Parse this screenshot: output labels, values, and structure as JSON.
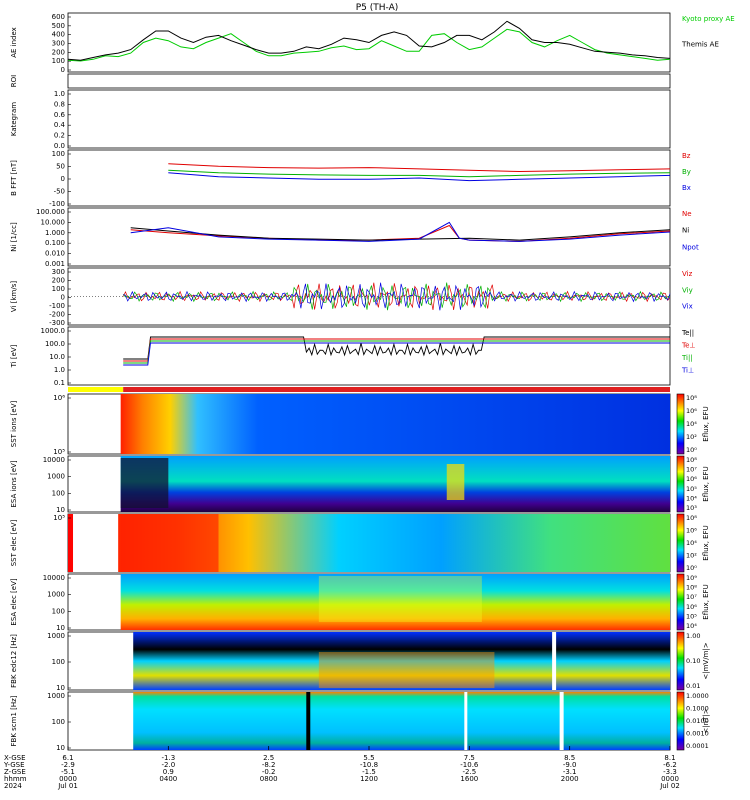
{
  "title": "P5  (TH-A)",
  "chart_data": [
    {
      "type": "line",
      "panel": "ae",
      "ylabel": "AE index",
      "yticks": [
        "600",
        "500",
        "400",
        "300",
        "200",
        "100",
        "0"
      ],
      "ylim": [
        0,
        600
      ],
      "series": [
        {
          "name": "Kyoto proxy AE",
          "color": "#00cc00",
          "x": [
            0,
            0.5,
            1,
            1.5,
            2,
            2.5,
            3,
            3.5,
            4,
            4.5,
            5,
            5.5,
            6,
            6.5,
            7,
            7.5,
            8,
            8.5,
            9,
            9.5,
            10,
            10.5,
            11,
            11.5,
            12,
            12.5,
            13,
            13.5,
            14,
            14.5,
            15,
            15.5,
            16,
            16.5,
            17,
            17.5,
            18,
            18.5,
            19,
            19.5,
            20,
            20.5,
            21,
            21.5,
            22,
            22.5,
            23,
            23.5,
            24
          ],
          "y": [
            100,
            90,
            110,
            150,
            140,
            180,
            300,
            350,
            320,
            250,
            230,
            300,
            350,
            400,
            300,
            200,
            150,
            150,
            180,
            190,
            200,
            240,
            260,
            220,
            230,
            320,
            260,
            200,
            200,
            380,
            400,
            300,
            220,
            250,
            350,
            450,
            420,
            300,
            250,
            320,
            380,
            300,
            220,
            180,
            160,
            140,
            120,
            100,
            110
          ]
        },
        {
          "name": "Themis AE",
          "color": "#000000",
          "x": [
            0,
            0.5,
            1,
            1.5,
            2,
            2.5,
            3,
            3.5,
            4,
            4.5,
            5,
            5.5,
            6,
            6.5,
            7,
            7.5,
            8,
            8.5,
            9,
            9.5,
            10,
            10.5,
            11,
            11.5,
            12,
            12.5,
            13,
            13.5,
            14,
            14.5,
            15,
            15.5,
            16,
            16.5,
            17,
            17.5,
            18,
            18.5,
            19,
            19.5,
            20,
            20.5,
            21,
            21.5,
            22,
            22.5,
            23,
            23.5,
            24
          ],
          "y": [
            110,
            100,
            130,
            160,
            180,
            220,
            330,
            430,
            430,
            350,
            300,
            360,
            380,
            320,
            270,
            220,
            180,
            180,
            200,
            250,
            230,
            280,
            350,
            330,
            300,
            380,
            420,
            380,
            260,
            250,
            300,
            380,
            380,
            330,
            420,
            540,
            460,
            330,
            300,
            300,
            280,
            240,
            200,
            190,
            180,
            160,
            150,
            130,
            120
          ]
        }
      ]
    },
    {
      "type": "bar",
      "panel": "roi",
      "ylabel": "ROI"
    },
    {
      "type": "line",
      "panel": "kategram",
      "ylabel": "Kategram",
      "yticks": [
        "1.0",
        "0.8",
        "0.6",
        "0.4",
        "0.2",
        "0.0"
      ],
      "ylim": [
        0,
        1
      ]
    },
    {
      "type": "line",
      "panel": "bfield",
      "ylabel": "B FFT [nT]",
      "yticks": [
        "100",
        "50",
        "0",
        "-50",
        "-100"
      ],
      "ylim": [
        -100,
        100
      ],
      "series": [
        {
          "name": "Bz",
          "color": "#e00000",
          "x": [
            4,
            6,
            8,
            10,
            12,
            14,
            16,
            18,
            20,
            22,
            24
          ],
          "y": [
            55,
            45,
            40,
            38,
            40,
            35,
            30,
            25,
            28,
            32,
            35
          ]
        },
        {
          "name": "By",
          "color": "#00b000",
          "x": [
            4,
            6,
            8,
            10,
            12,
            14,
            16,
            18,
            20,
            22,
            24
          ],
          "y": [
            30,
            20,
            15,
            12,
            10,
            10,
            5,
            10,
            15,
            18,
            20
          ]
        },
        {
          "name": "Bx",
          "color": "#0000e0",
          "x": [
            4,
            6,
            8,
            10,
            12,
            14,
            16,
            18,
            20,
            22,
            24
          ],
          "y": [
            20,
            5,
            0,
            -5,
            -5,
            0,
            -10,
            -5,
            0,
            5,
            10
          ]
        }
      ]
    },
    {
      "type": "line",
      "panel": "density",
      "ylabel": "Ni [1/cc]",
      "yticks": [
        "100.000",
        "10.000",
        "1.000",
        "0.100",
        "0.010",
        "0.001"
      ],
      "yscale": "log",
      "series": [
        {
          "name": "Ne",
          "color": "#e00000",
          "x": [
            2.5,
            4,
            6,
            8,
            10,
            12,
            14,
            15.2,
            15.6,
            16,
            18,
            20,
            22,
            24
          ],
          "y": [
            2,
            1,
            0.5,
            0.3,
            0.2,
            0.2,
            0.3,
            5,
            0.3,
            0.2,
            0.15,
            0.3,
            0.8,
            1.5
          ]
        },
        {
          "name": "Ni",
          "color": "#000000",
          "x": [
            2.5,
            4,
            6,
            8,
            10,
            12,
            14,
            16,
            18,
            20,
            22,
            24
          ],
          "y": [
            3,
            1.5,
            0.6,
            0.3,
            0.25,
            0.2,
            0.25,
            0.3,
            0.2,
            0.4,
            1,
            2
          ]
        },
        {
          "name": "Npot",
          "color": "#0000e0",
          "x": [
            2.5,
            4,
            6,
            8,
            10,
            12,
            14,
            15.2,
            15.6,
            16,
            18,
            20,
            22,
            24
          ],
          "y": [
            1,
            3,
            0.4,
            0.25,
            0.2,
            0.15,
            0.25,
            10,
            0.3,
            0.2,
            0.15,
            0.25,
            0.6,
            1.2
          ]
        }
      ]
    },
    {
      "type": "line",
      "panel": "velocity",
      "ylabel": "Vi [km/s]",
      "yticks": [
        "300",
        "200",
        "100",
        "0",
        "-100",
        "-200",
        "-300"
      ],
      "ylim": [
        -300,
        300
      ],
      "series": [
        {
          "name": "Viz",
          "color": "#e00000"
        },
        {
          "name": "Viy",
          "color": "#00b000"
        },
        {
          "name": "Vix",
          "color": "#0000e0"
        }
      ]
    },
    {
      "type": "line",
      "panel": "temperature",
      "ylabel": "Ti [eV]",
      "yticks": [
        "1000.0",
        "100.0",
        "10.0",
        "1.0",
        "0.1"
      ],
      "yscale": "log",
      "series": [
        {
          "name": "Te||",
          "color": "#000000"
        },
        {
          "name": "Te⊥",
          "color": "#e00000"
        },
        {
          "name": "Ti||",
          "color": "#00b000"
        },
        {
          "name": "Ti⊥",
          "color": "#0000e0"
        }
      ]
    },
    {
      "type": "heatmap",
      "panel": "sst_ion",
      "ylabel": "SST ions [eV]",
      "yticks": [
        "10⁶",
        "10⁵"
      ],
      "colorbar_label": "Eflux, EFU",
      "colorbar_ticks": [
        "10⁸",
        "10⁶",
        "10⁴",
        "10²",
        "10⁰"
      ]
    },
    {
      "type": "heatmap",
      "panel": "esa_ion",
      "ylabel": "ESA ions [eV]",
      "yticks": [
        "10000",
        "1000",
        "100",
        "10"
      ],
      "colorbar_label": "Eflux, EFU",
      "colorbar_ticks": [
        "10⁸",
        "10⁷",
        "10⁶",
        "10⁵",
        "10⁴",
        "10³"
      ]
    },
    {
      "type": "heatmap",
      "panel": "sst_elec",
      "ylabel": "SST elec [eV]",
      "yticks": [
        "10⁵"
      ],
      "colorbar_label": "Eflux, EFU",
      "colorbar_ticks": [
        "10⁸",
        "10⁶",
        "10⁴",
        "10²",
        "10⁰"
      ]
    },
    {
      "type": "heatmap",
      "panel": "esa_elec",
      "ylabel": "ESA elec [eV]",
      "yticks": [
        "10000",
        "1000",
        "100",
        "10"
      ],
      "colorbar_label": "Eflux, EFU",
      "colorbar_ticks": [
        "10⁹",
        "10⁸",
        "10⁷",
        "10⁶",
        "10⁵",
        "10⁴"
      ]
    },
    {
      "type": "heatmap",
      "panel": "fbk_e",
      "ylabel": "FBK edc12 [Hz]",
      "yticks": [
        "1000",
        "100",
        "10"
      ],
      "colorbar_label": "<|mV/m|>",
      "colorbar_ticks": [
        "1.00",
        "0.10",
        "0.01"
      ]
    },
    {
      "type": "heatmap",
      "panel": "fbk_b",
      "ylabel": "FBK scm1 [Hz]",
      "yticks": [
        "1000",
        "100",
        "10"
      ],
      "colorbar_label": "<|nT|>",
      "colorbar_ticks": [
        "1.0000",
        "0.1000",
        "0.0100",
        "0.0010",
        "0.0001"
      ]
    }
  ],
  "xaxis": {
    "row_labels": [
      "X-GSE",
      "Y-GSE",
      "Z-GSE",
      "hhmm",
      "2024"
    ],
    "ticks": [
      {
        "x": "6.1",
        "y": "-2.9",
        "z": "-5.1",
        "hhmm": "0000",
        "date": "Jul 01"
      },
      {
        "x": "-1.3",
        "y": "-2.0",
        "z": "0.9",
        "hhmm": "0400",
        "date": ""
      },
      {
        "x": "2.5",
        "y": "-8.2",
        "z": "-0.2",
        "hhmm": "0800",
        "date": ""
      },
      {
        "x": "5.5",
        "y": "-10.8",
        "z": "-1.5",
        "hhmm": "1200",
        "date": ""
      },
      {
        "x": "7.5",
        "y": "-10.6",
        "z": "-2.5",
        "hhmm": "1600",
        "date": ""
      },
      {
        "x": "8.5",
        "y": "-9.0",
        "z": "-3.1",
        "hhmm": "2000",
        "date": ""
      },
      {
        "x": "8.1",
        "y": "-6.2",
        "z": "-3.3",
        "hhmm": "0000",
        "date": "Jul 02"
      }
    ]
  }
}
